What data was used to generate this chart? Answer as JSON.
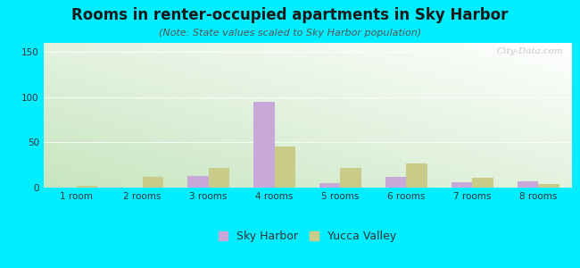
{
  "title": "Rooms in renter-occupied apartments in Sky Harbor",
  "subtitle": "(Note: State values scaled to Sky Harbor population)",
  "categories": [
    "1 room",
    "2 rooms",
    "3 rooms",
    "4 rooms",
    "5 rooms",
    "6 rooms",
    "7 rooms",
    "8 rooms"
  ],
  "sky_harbor": [
    0,
    0,
    13,
    95,
    5,
    12,
    6,
    7
  ],
  "yucca_valley": [
    2,
    12,
    22,
    45,
    22,
    27,
    11,
    4
  ],
  "sky_harbor_color": "#c8a8d8",
  "yucca_valley_color": "#c8cc88",
  "background_color": "#00eeff",
  "ylim": [
    0,
    160
  ],
  "yticks": [
    0,
    50,
    100,
    150
  ],
  "bar_width": 0.32,
  "title_fontsize": 12,
  "subtitle_fontsize": 8,
  "tick_fontsize": 7.5,
  "legend_fontsize": 9,
  "watermark": "City-Data.com"
}
